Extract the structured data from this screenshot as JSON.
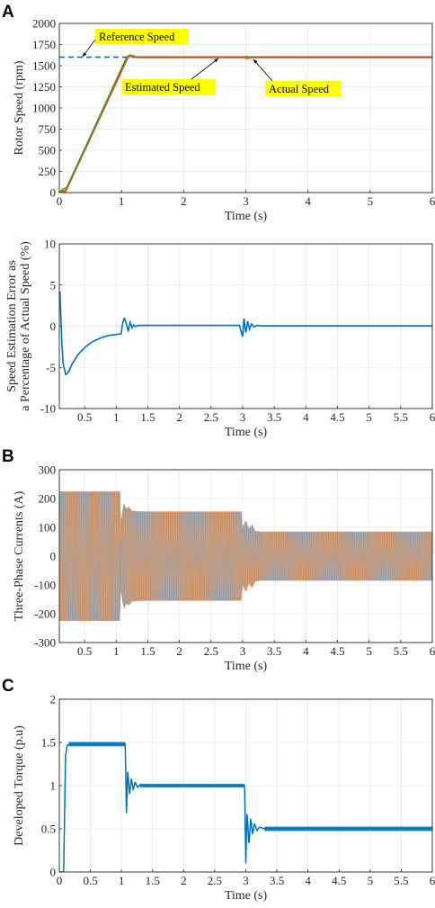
{
  "panel_labels": [
    "A",
    "B",
    "C"
  ],
  "colors": {
    "speed_blue": "#0072BD",
    "speed_orange": "#D95319",
    "speed_green": "#2ca02c",
    "current_orange": "#E8A16A",
    "current_gray": "#8f8f8f",
    "current_blue": "#6a9fd4",
    "torque_blue": "#0072BD",
    "annotation_fill": "#FFFF00"
  },
  "chart_data": [
    {
      "id": "rotor_speed",
      "type": "line",
      "xlabel": "Time (s)",
      "ylabel": "Rotor Speed (rpm)",
      "xlim": [
        0,
        6
      ],
      "ylim": [
        0,
        2000
      ],
      "xticks": [
        0,
        1,
        2,
        3,
        4,
        5,
        6
      ],
      "yticks": [
        0,
        250,
        500,
        750,
        1000,
        1250,
        1500,
        1750,
        2000
      ],
      "grid": true,
      "series": [
        {
          "name": "Reference Speed",
          "style": "dashed",
          "color": "#0072BD",
          "x": [
            0,
            6
          ],
          "y": [
            1600,
            1600
          ]
        },
        {
          "name": "Actual Speed",
          "color": "#D95319",
          "x": [
            0,
            0.05,
            0.1,
            1.1,
            1.15,
            1.25,
            2.98,
            3.02,
            3.1,
            6
          ],
          "y": [
            0,
            20,
            20,
            1600,
            1620,
            1600,
            1600,
            1590,
            1600,
            1600
          ]
        },
        {
          "name": "Estimated Speed",
          "color": "#2ca02c",
          "x": [
            0,
            0.05,
            0.12,
            1.08,
            1.13,
            1.2,
            2.98,
            3.01,
            3.08,
            6
          ],
          "y": [
            0,
            40,
            60,
            1600,
            1625,
            1598,
            1600,
            1612,
            1600,
            1600
          ]
        }
      ],
      "annotations": [
        {
          "text": "Reference Speed",
          "x": 0.35,
          "y": 1600
        },
        {
          "text": "Estimated Speed",
          "x": 2.6,
          "y": 1600
        },
        {
          "text": "Actual Speed",
          "x": 3.15,
          "y": 1600
        }
      ]
    },
    {
      "id": "speed_error",
      "type": "line",
      "xlabel": "Time (s)",
      "ylabel": [
        "Speed Estimation Error as",
        "a Percentage of Actual Speed (%)"
      ],
      "xlim": [
        0.1,
        6
      ],
      "ylim": [
        -10,
        10
      ],
      "xticks": [
        0.5,
        1,
        1.5,
        2,
        2.5,
        3,
        3.5,
        4,
        4.5,
        5,
        5.5,
        6
      ],
      "xticklabels": [
        "0.5",
        "1",
        "1.5",
        "2",
        "2.5",
        "3",
        "3.5",
        "4",
        "4.5",
        "5",
        "5.5",
        "6"
      ],
      "yticks": [
        -10,
        -5,
        0,
        5,
        10
      ],
      "grid": true,
      "series": [
        {
          "name": "",
          "color": "#0072BD",
          "x": [
            0.11,
            0.12,
            0.14,
            0.16,
            0.2,
            0.25,
            0.3,
            0.4,
            0.5,
            0.6,
            0.7,
            0.8,
            0.9,
            1.0,
            1.08,
            1.1,
            1.13,
            1.16,
            1.19,
            1.22,
            1.25,
            1.28,
            1.31,
            1.35,
            1.5,
            2.0,
            2.5,
            2.95,
            3.0,
            3.02,
            3.05,
            3.08,
            3.11,
            3.14,
            3.18,
            3.22,
            3.3,
            3.5,
            6.0
          ],
          "y": [
            4.2,
            2.0,
            -2.0,
            -4.5,
            -5.9,
            -5.5,
            -4.6,
            -3.4,
            -2.6,
            -2.0,
            -1.6,
            -1.3,
            -1.1,
            -1.0,
            -0.9,
            0.3,
            1.0,
            0.3,
            -0.6,
            0.5,
            -0.2,
            0.15,
            -0.05,
            0.1,
            0.1,
            0.1,
            0.1,
            0.1,
            -1.3,
            1.0,
            -0.8,
            0.6,
            -0.4,
            0.3,
            -0.1,
            0.1,
            0.05,
            0.05,
            0.05
          ]
        }
      ]
    },
    {
      "id": "phase_currents",
      "type": "area",
      "xlabel": "Time (s)",
      "ylabel": "Three-Phase Currents (A)",
      "xlim": [
        0.1,
        6
      ],
      "ylim": [
        -300,
        300
      ],
      "xticks": [
        0.5,
        1,
        1.5,
        2,
        2.5,
        3,
        3.5,
        4,
        4.5,
        5,
        5.5,
        6
      ],
      "xticklabels": [
        "0.5",
        "1",
        "1.5",
        "2",
        "2.5",
        "3",
        "3.5",
        "4",
        "4.5",
        "5",
        "5.5",
        "6"
      ],
      "yticks": [
        -300,
        -200,
        -100,
        0,
        100,
        200,
        300
      ],
      "grid": true,
      "envelope": {
        "x": [
          0.1,
          1.06,
          1.07,
          1.12,
          1.16,
          1.2,
          1.25,
          1.35,
          1.5,
          2.98,
          3.0,
          3.05,
          3.1,
          3.15,
          3.2,
          3.3,
          6.0
        ],
        "upper": [
          225,
          225,
          120,
          185,
          165,
          172,
          158,
          156,
          155,
          155,
          100,
          125,
          95,
          110,
          88,
          85,
          85
        ],
        "lower": [
          -225,
          -225,
          -120,
          -185,
          -165,
          -172,
          -158,
          -156,
          -155,
          -155,
          -100,
          -125,
          -95,
          -110,
          -88,
          -85,
          -85
        ]
      }
    },
    {
      "id": "developed_torque",
      "type": "line",
      "xlabel": "Time (s)",
      "ylabel": "Developed Torque (p.u)",
      "xlim": [
        0,
        6
      ],
      "ylim": [
        0,
        2
      ],
      "xticks": [
        0,
        0.5,
        1,
        1.5,
        2,
        2.5,
        3,
        3.5,
        4,
        4.5,
        5,
        5.5,
        6
      ],
      "xticklabels": [
        "0",
        "0.5",
        "1",
        "1.5",
        "2",
        "2.5",
        "3",
        "3.5",
        "4",
        "4.5",
        "5",
        "5.5",
        "6"
      ],
      "yticks": [
        0,
        0.5,
        1,
        1.5,
        2
      ],
      "grid": true,
      "series": [
        {
          "name": "",
          "color": "#0072BD",
          "x": [
            0.0,
            0.07,
            0.1,
            0.13,
            0.2,
            0.5,
            1.0,
            1.06,
            1.08,
            1.1,
            1.13,
            1.16,
            1.19,
            1.22,
            1.26,
            1.3,
            1.4,
            1.6,
            2.0,
            2.5,
            2.98,
            3.0,
            3.02,
            3.05,
            3.08,
            3.11,
            3.14,
            3.18,
            3.22,
            3.3,
            3.5,
            4.0,
            6.0
          ],
          "y": [
            0,
            0,
            1.35,
            1.47,
            1.48,
            1.48,
            1.48,
            1.48,
            0.68,
            1.18,
            0.9,
            1.08,
            0.95,
            1.04,
            0.98,
            1.01,
            1.0,
            1.0,
            1.0,
            1.0,
            1.0,
            0.1,
            0.7,
            0.32,
            0.62,
            0.44,
            0.56,
            0.48,
            0.52,
            0.5,
            0.5,
            0.5,
            0.5
          ],
          "noise_band": [
            [
              0.15,
              1.06,
              0.025
            ],
            [
              1.3,
              2.98,
              0.02
            ],
            [
              3.3,
              6.0,
              0.025
            ]
          ]
        }
      ]
    }
  ]
}
